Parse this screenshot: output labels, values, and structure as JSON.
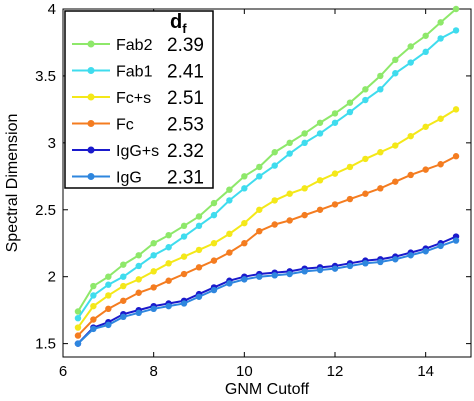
{
  "chart_data": {
    "type": "line",
    "title": "",
    "xlabel": "GNM Cutoff",
    "ylabel": "Spectral Dimension",
    "xlim": [
      6,
      15
    ],
    "ylim": [
      1.4,
      4
    ],
    "xticks": [
      "6",
      "8",
      "10",
      "12",
      "14"
    ],
    "yticks": [
      "1.5",
      "2",
      "2.5",
      "3",
      "3.5",
      "4"
    ],
    "legend_header": {
      "base": "d",
      "sub": "f"
    },
    "legend_position": "top-left",
    "grid": false,
    "x": [
      6.33,
      6.67,
      7.0,
      7.33,
      7.67,
      8.0,
      8.33,
      8.67,
      9.0,
      9.33,
      9.67,
      10.0,
      10.33,
      10.67,
      11.0,
      11.33,
      11.67,
      12.0,
      12.33,
      12.67,
      13.0,
      13.33,
      13.67,
      14.0,
      14.33,
      14.67
    ],
    "series": [
      {
        "name": "Fab2",
        "df": "2.39",
        "color": "#8ee86a",
        "values": [
          1.74,
          1.93,
          2.0,
          2.09,
          2.16,
          2.25,
          2.31,
          2.38,
          2.45,
          2.55,
          2.65,
          2.75,
          2.82,
          2.93,
          3.0,
          3.07,
          3.15,
          3.22,
          3.3,
          3.4,
          3.5,
          3.62,
          3.72,
          3.8,
          3.9,
          4.0
        ]
      },
      {
        "name": "Fab1",
        "df": "2.41",
        "color": "#3fdcee",
        "values": [
          1.69,
          1.86,
          1.94,
          2.0,
          2.08,
          2.16,
          2.22,
          2.3,
          2.38,
          2.46,
          2.57,
          2.66,
          2.75,
          2.83,
          2.92,
          3.0,
          3.07,
          3.15,
          3.23,
          3.32,
          3.4,
          3.52,
          3.6,
          3.68,
          3.78,
          3.84
        ]
      },
      {
        "name": "Fc+s",
        "df": "2.51",
        "color": "#f4e819",
        "values": [
          1.62,
          1.78,
          1.86,
          1.93,
          1.98,
          2.04,
          2.1,
          2.15,
          2.2,
          2.25,
          2.32,
          2.4,
          2.5,
          2.57,
          2.62,
          2.66,
          2.72,
          2.77,
          2.82,
          2.88,
          2.93,
          2.98,
          3.05,
          3.12,
          3.18,
          3.25
        ]
      },
      {
        "name": "Fc",
        "df": "2.53",
        "color": "#f47c20",
        "values": [
          1.56,
          1.68,
          1.76,
          1.82,
          1.88,
          1.92,
          1.97,
          2.02,
          2.07,
          2.12,
          2.18,
          2.25,
          2.34,
          2.39,
          2.42,
          2.46,
          2.5,
          2.54,
          2.58,
          2.62,
          2.66,
          2.71,
          2.76,
          2.8,
          2.84,
          2.9
        ]
      },
      {
        "name": "IgG+s",
        "df": "2.32",
        "color": "#1a1acc",
        "values": [
          1.5,
          1.62,
          1.66,
          1.72,
          1.75,
          1.78,
          1.8,
          1.82,
          1.87,
          1.92,
          1.97,
          2.0,
          2.02,
          2.03,
          2.04,
          2.06,
          2.07,
          2.08,
          2.1,
          2.12,
          2.13,
          2.15,
          2.18,
          2.21,
          2.25,
          2.3
        ]
      },
      {
        "name": "IgG",
        "df": "2.31",
        "color": "#2e86de",
        "values": [
          1.5,
          1.61,
          1.64,
          1.7,
          1.73,
          1.76,
          1.78,
          1.8,
          1.85,
          1.9,
          1.95,
          1.98,
          2.0,
          2.01,
          2.02,
          2.04,
          2.05,
          2.06,
          2.08,
          2.1,
          2.11,
          2.13,
          2.16,
          2.19,
          2.23,
          2.27
        ]
      }
    ]
  }
}
